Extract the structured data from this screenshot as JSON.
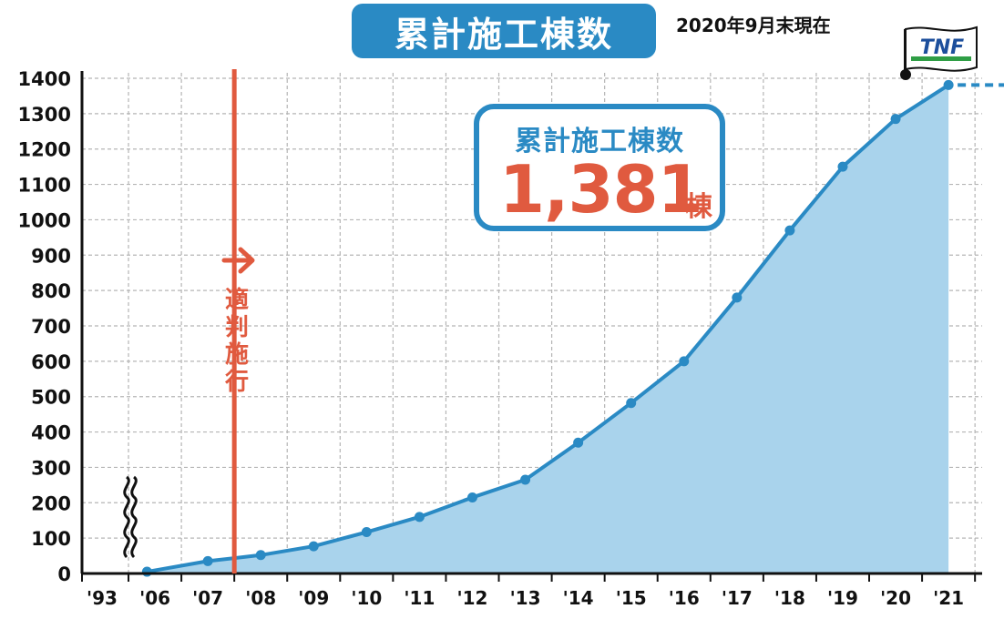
{
  "header": {
    "title": "累計施工棟数",
    "as_of": "2020年9月末現在"
  },
  "callout": {
    "title": "累計施工棟数",
    "value": "1,381",
    "unit": "棟"
  },
  "logo": {
    "text": "TNF"
  },
  "annotation": {
    "text": "適判施行",
    "arrow_icon": "right-arrow-icon"
  },
  "colors": {
    "accent": "#2a8ac4",
    "line": "#2a8ac4",
    "area": "#a9d3ec",
    "highlight": "#e05a3f",
    "grid": "#b5b5b5"
  },
  "chart_data": {
    "type": "area",
    "x_ticks": [
      "'93",
      "'06",
      "'07",
      "'08",
      "'09",
      "'10",
      "'11",
      "'12",
      "'13",
      "'14",
      "'15",
      "'16",
      "'17",
      "'18",
      "'19",
      "'20",
      "'21"
    ],
    "y_ticks": [
      0,
      100,
      200,
      300,
      400,
      500,
      600,
      700,
      800,
      900,
      1000,
      1100,
      1200,
      1300,
      1400
    ],
    "ylim": [
      0,
      1400
    ],
    "grid": true,
    "axis_break_after": "'93",
    "vertical_marker": {
      "position": 2.5,
      "label": "適判施行"
    },
    "series": [
      {
        "x": [
          0.85,
          2,
          3,
          4,
          5,
          6,
          7,
          8,
          9,
          10,
          11,
          12,
          13,
          14,
          15,
          16
        ],
        "values": [
          5,
          35,
          52,
          77,
          117,
          160,
          215,
          265,
          370,
          482,
          600,
          780,
          970,
          1150,
          1285,
          1381
        ]
      }
    ],
    "end_marker": {
      "x": 16,
      "value": 1381,
      "extend_to": 18.2
    }
  }
}
